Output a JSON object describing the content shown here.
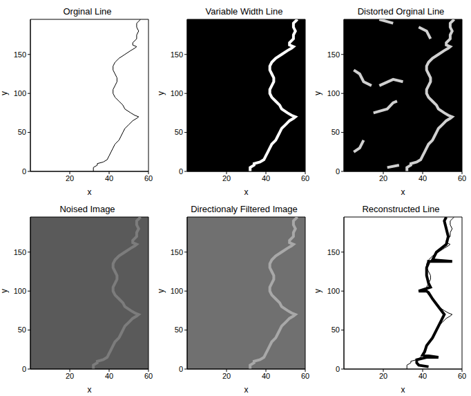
{
  "chart_data": [
    {
      "type": "line",
      "title": "Orginal Line",
      "x_label": "x",
      "y_label": "y",
      "xlim": [
        0,
        60
      ],
      "ylim": [
        0,
        195
      ],
      "xticks": [
        20,
        40,
        60
      ],
      "yticks": [
        0,
        50,
        100,
        150
      ],
      "series": [
        {
          "color": "#000000",
          "line_style": "thin",
          "x": [
            32,
            32,
            34,
            34,
            37,
            39,
            40,
            41,
            42,
            43,
            45,
            46,
            47,
            48,
            50,
            52,
            54,
            55,
            53,
            51,
            48,
            47,
            45,
            43,
            42,
            42,
            43,
            44,
            44,
            43,
            42,
            42,
            43,
            45,
            48,
            51,
            53,
            54,
            52,
            52,
            54,
            54,
            55,
            54,
            54,
            56
          ],
          "y": [
            0,
            5,
            8,
            10,
            12,
            15,
            20,
            25,
            30,
            35,
            40,
            45,
            50,
            55,
            60,
            65,
            68,
            70,
            72,
            75,
            80,
            85,
            90,
            95,
            100,
            105,
            110,
            115,
            120,
            125,
            130,
            135,
            140,
            145,
            150,
            155,
            158,
            160,
            162,
            165,
            170,
            175,
            180,
            185,
            190,
            195
          ]
        }
      ]
    },
    {
      "type": "image",
      "title": "Variable Width Line",
      "x_label": "x",
      "y_label": "y",
      "xlim": [
        0,
        60
      ],
      "ylim": [
        0,
        195
      ],
      "xticks": [
        20,
        40,
        60
      ],
      "yticks": [
        0,
        50,
        100,
        150
      ],
      "color": "#000000",
      "series": [
        {
          "color": "#ffffff",
          "line_style": "thick",
          "x": [
            32,
            32,
            34,
            34,
            37,
            39,
            40,
            41,
            42,
            43,
            45,
            46,
            47,
            48,
            50,
            52,
            54,
            55,
            53,
            51,
            48,
            47,
            45,
            43,
            42,
            42,
            43,
            44,
            44,
            43,
            42,
            42,
            43,
            45,
            48,
            51,
            53,
            54,
            52,
            52,
            54,
            54,
            55,
            54,
            54,
            56
          ],
          "y": [
            0,
            5,
            8,
            10,
            12,
            15,
            20,
            25,
            30,
            35,
            40,
            45,
            50,
            55,
            60,
            65,
            68,
            70,
            72,
            75,
            80,
            85,
            90,
            95,
            100,
            105,
            110,
            115,
            120,
            125,
            130,
            135,
            140,
            145,
            150,
            155,
            158,
            160,
            162,
            165,
            170,
            175,
            180,
            185,
            190,
            195
          ]
        }
      ]
    },
    {
      "type": "image",
      "title": "Distorted Orginal Line",
      "x_label": "x",
      "y_label": "y",
      "xlim": [
        0,
        60
      ],
      "ylim": [
        0,
        195
      ],
      "xticks": [
        20,
        40,
        60
      ],
      "yticks": [
        0,
        50,
        100,
        150
      ],
      "color": "#000000",
      "series": [
        {
          "color": "#d0d0d0",
          "line_style": "thick",
          "x": [
            32,
            32,
            34,
            34,
            37,
            39,
            40,
            41,
            42,
            43,
            45,
            46,
            47,
            48,
            50,
            52,
            54,
            55,
            53,
            51,
            48,
            47,
            45,
            43,
            42,
            42,
            43,
            44,
            44,
            43,
            42,
            42,
            43,
            45,
            48,
            51,
            53,
            54,
            52,
            52,
            54,
            54,
            55,
            54,
            54,
            56
          ],
          "y": [
            0,
            5,
            8,
            10,
            12,
            15,
            20,
            25,
            30,
            35,
            40,
            45,
            50,
            55,
            60,
            65,
            68,
            70,
            72,
            75,
            80,
            85,
            90,
            95,
            100,
            105,
            110,
            115,
            120,
            125,
            130,
            135,
            140,
            145,
            150,
            155,
            158,
            160,
            162,
            165,
            170,
            175,
            180,
            185,
            190,
            195
          ]
        },
        {
          "color": "#d0d0d0",
          "line_style": "thick",
          "x": [
            15,
            22,
            25,
            27
          ],
          "y": [
            75,
            80,
            88,
            90
          ]
        },
        {
          "color": "#d0d0d0",
          "line_style": "thick",
          "x": [
            5,
            8,
            10,
            14
          ],
          "y": [
            130,
            125,
            115,
            110
          ]
        },
        {
          "color": "#d0d0d0",
          "line_style": "thick",
          "x": [
            18,
            25,
            30
          ],
          "y": [
            110,
            118,
            115
          ]
        },
        {
          "color": "#d0d0d0",
          "line_style": "thick",
          "x": [
            10,
            8,
            5
          ],
          "y": [
            40,
            30,
            25
          ]
        },
        {
          "color": "#d0d0d0",
          "line_style": "thick",
          "x": [
            38,
            42,
            44
          ],
          "y": [
            185,
            180,
            170
          ]
        },
        {
          "color": "#d0d0d0",
          "line_style": "thick",
          "x": [
            22,
            28
          ],
          "y": [
            5,
            8
          ]
        },
        {
          "color": "#d0d0d0",
          "line_style": "thick",
          "x": [
            18,
            25
          ],
          "y": [
            195,
            190
          ]
        }
      ]
    },
    {
      "type": "image",
      "title": "Noised Image",
      "x_label": "x",
      "y_label": "y",
      "xlim": [
        0,
        60
      ],
      "ylim": [
        0,
        195
      ],
      "xticks": [
        20,
        40,
        60
      ],
      "yticks": [
        0,
        50,
        100,
        150
      ],
      "color": "#5a5a5a",
      "series": [
        {
          "color": "#7c7c7c",
          "line_style": "thick",
          "x": [
            32,
            32,
            34,
            34,
            37,
            39,
            40,
            41,
            42,
            43,
            45,
            46,
            47,
            48,
            50,
            52,
            54,
            55,
            53,
            51,
            48,
            47,
            45,
            43,
            42,
            42,
            43,
            44,
            44,
            43,
            42,
            42,
            43,
            45,
            48,
            51,
            53,
            54,
            52,
            52,
            54,
            54,
            55,
            54,
            54,
            56
          ],
          "y": [
            0,
            5,
            8,
            10,
            12,
            15,
            20,
            25,
            30,
            35,
            40,
            45,
            50,
            55,
            60,
            65,
            68,
            70,
            72,
            75,
            80,
            85,
            90,
            95,
            100,
            105,
            110,
            115,
            120,
            125,
            130,
            135,
            140,
            145,
            150,
            155,
            158,
            160,
            162,
            165,
            170,
            175,
            180,
            185,
            190,
            195
          ]
        }
      ]
    },
    {
      "type": "image",
      "title": "Directionaly Filtered Image",
      "x_label": "x",
      "y_label": "y",
      "xlim": [
        0,
        60
      ],
      "ylim": [
        0,
        195
      ],
      "xticks": [
        20,
        40,
        60
      ],
      "yticks": [
        0,
        50,
        100,
        150
      ],
      "color": "#707070",
      "series": [
        {
          "color": "#a8a8a8",
          "line_style": "thick",
          "x": [
            32,
            32,
            34,
            34,
            37,
            39,
            40,
            41,
            42,
            43,
            45,
            46,
            47,
            48,
            50,
            52,
            54,
            55,
            53,
            51,
            48,
            47,
            45,
            43,
            42,
            42,
            43,
            44,
            44,
            43,
            42,
            42,
            43,
            45,
            48,
            51,
            53,
            54,
            52,
            52,
            54,
            54,
            55,
            54,
            54,
            56
          ],
          "y": [
            0,
            5,
            8,
            10,
            12,
            15,
            20,
            25,
            30,
            35,
            40,
            45,
            50,
            55,
            60,
            65,
            68,
            70,
            72,
            75,
            80,
            85,
            90,
            95,
            100,
            105,
            110,
            115,
            120,
            125,
            130,
            135,
            140,
            145,
            150,
            155,
            158,
            160,
            162,
            165,
            170,
            175,
            180,
            185,
            190,
            195
          ]
        }
      ]
    },
    {
      "type": "line",
      "title": "Reconstructed Line",
      "x_label": "x",
      "y_label": "y",
      "xlim": [
        0,
        60
      ],
      "ylim": [
        0,
        195
      ],
      "xticks": [
        20,
        40,
        60
      ],
      "yticks": [
        0,
        50,
        100,
        150
      ],
      "series": [
        {
          "color": "#000000",
          "line_style": "thin",
          "x": [
            32,
            32,
            34,
            34,
            37,
            39,
            40,
            41,
            42,
            43,
            45,
            46,
            47,
            48,
            50,
            52,
            54,
            55,
            53,
            51,
            48,
            47,
            45,
            43,
            42,
            42,
            43,
            44,
            44,
            43,
            42,
            42,
            43,
            45,
            48,
            51,
            53,
            54,
            52,
            52,
            54,
            54,
            55,
            54,
            54,
            56
          ],
          "y": [
            0,
            5,
            8,
            10,
            12,
            15,
            20,
            25,
            30,
            35,
            40,
            45,
            50,
            55,
            60,
            65,
            68,
            70,
            72,
            75,
            80,
            85,
            90,
            95,
            100,
            105,
            110,
            115,
            120,
            125,
            130,
            135,
            140,
            145,
            150,
            155,
            158,
            160,
            162,
            165,
            170,
            175,
            180,
            185,
            190,
            195
          ]
        },
        {
          "color": "#000000",
          "line_style": "thick",
          "x": [
            43,
            38,
            37,
            37,
            42,
            48,
            40,
            41,
            42,
            45,
            47,
            49,
            51,
            48,
            45,
            43,
            42,
            38,
            44,
            43,
            42,
            42,
            43,
            43,
            55,
            45,
            47,
            52,
            53,
            52,
            51,
            52
          ],
          "y": [
            3,
            5,
            8,
            12,
            15,
            15,
            18,
            22,
            30,
            40,
            50,
            60,
            70,
            80,
            90,
            98,
            100,
            100,
            105,
            110,
            120,
            130,
            136,
            138,
            138,
            140,
            150,
            160,
            170,
            180,
            190,
            195
          ]
        }
      ]
    }
  ]
}
